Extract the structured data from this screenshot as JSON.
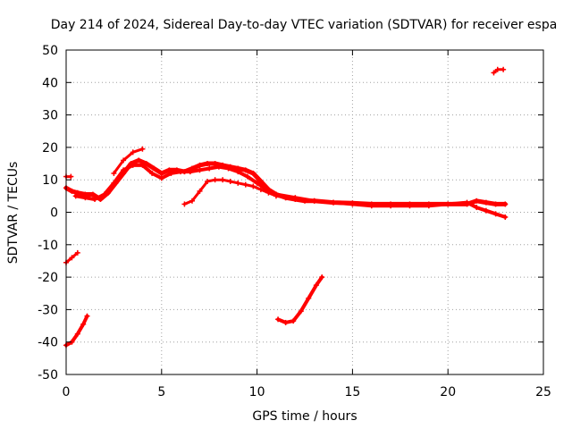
{
  "chart_data": {
    "type": "line",
    "title": "Day 214 of 2024, Sidereal Day-to-day VTEC variation (SDTVAR) for receiver espa",
    "xlabel": "GPS time / hours",
    "ylabel": "SDTVAR / TECUs",
    "xlim": [
      0,
      25
    ],
    "ylim": [
      -50,
      50
    ],
    "x_ticks": [
      0,
      5,
      10,
      15,
      20,
      25
    ],
    "y_ticks": [
      -50,
      -40,
      -30,
      -20,
      -10,
      0,
      10,
      20,
      30,
      40,
      50
    ],
    "x_tick_labels": [
      "0",
      "5",
      "10",
      "15",
      "20",
      "25"
    ],
    "y_tick_labels": [
      "-50",
      "-40",
      "-30",
      "-20",
      "-10",
      "0",
      "10",
      "20",
      "30",
      "40",
      "50"
    ],
    "grid": true,
    "series_color": "#ff0000",
    "series": [
      {
        "name": "main-band-upper",
        "width": 5,
        "x": [
          0.0,
          0.3,
          0.6,
          1.0,
          1.4,
          1.8,
          2.2,
          2.6,
          3.0,
          3.4,
          3.8,
          4.2,
          4.6,
          5.0,
          5.4,
          5.8,
          6.2,
          6.6,
          7.0,
          7.4,
          7.8,
          8.2,
          8.6,
          9.0,
          9.4,
          9.8,
          10.2,
          10.6,
          11.0,
          11.5,
          12.0,
          12.5,
          13.0,
          14.0,
          15.0,
          16.0,
          17.0,
          18.0,
          19.0,
          20.0,
          21.0,
          21.5,
          22.0,
          22.5,
          23.0
        ],
        "y": [
          7.5,
          6.5,
          6.0,
          5.5,
          5.5,
          4.0,
          6.0,
          9.0,
          12.0,
          15.0,
          16.0,
          15.0,
          13.5,
          12.0,
          13.0,
          13.0,
          12.5,
          13.5,
          14.5,
          15.0,
          15.0,
          14.5,
          14.0,
          13.5,
          13.0,
          12.0,
          9.5,
          7.0,
          5.5,
          4.5,
          4.0,
          3.5,
          3.5,
          3.0,
          2.8,
          2.5,
          2.5,
          2.5,
          2.5,
          2.5,
          2.5,
          3.5,
          3.0,
          2.5,
          2.5
        ]
      },
      {
        "name": "main-band-lower",
        "width": 4,
        "x": [
          0.5,
          1.0,
          1.5,
          2.0,
          2.5,
          3.0,
          3.5,
          4.0,
          4.5,
          5.0,
          5.5,
          6.0,
          6.5,
          7.0,
          7.5,
          8.0,
          8.5,
          9.0,
          9.5,
          10.0,
          10.5,
          11.0,
          12.0,
          13.0,
          14.0,
          15.0,
          16.0,
          17.0,
          18.0,
          19.0,
          20.0,
          21.0,
          21.5,
          22.0,
          22.5,
          23.0
        ],
        "y": [
          5.0,
          4.5,
          4.0,
          5.5,
          9.0,
          13.0,
          14.5,
          14.5,
          12.0,
          10.5,
          12.0,
          12.5,
          12.5,
          13.0,
          13.5,
          14.0,
          13.5,
          12.5,
          11.0,
          9.0,
          7.0,
          5.5,
          4.5,
          3.5,
          3.0,
          2.5,
          2.0,
          2.0,
          2.0,
          2.0,
          2.5,
          3.0,
          1.5,
          0.5,
          -0.5,
          -1.5
        ]
      },
      {
        "name": "upper-arc",
        "width": 3,
        "x": [
          2.5,
          3.0,
          3.5,
          4.0
        ],
        "y": [
          12.0,
          16.0,
          18.5,
          19.5
        ]
      },
      {
        "name": "mid-branch",
        "width": 3,
        "x": [
          6.2,
          6.6,
          7.0,
          7.4,
          7.8,
          8.2,
          8.6,
          9.0,
          9.4,
          9.8,
          10.2,
          10.6,
          11.0,
          11.5
        ],
        "y": [
          2.5,
          3.5,
          6.5,
          9.5,
          10.0,
          10.0,
          9.5,
          9.0,
          8.5,
          8.0,
          7.0,
          6.0,
          5.0,
          4.5
        ]
      },
      {
        "name": "left-short",
        "width": 3,
        "x": [
          0.0,
          0.25
        ],
        "y": [
          11.0,
          11.0
        ]
      },
      {
        "name": "neg-lower",
        "width": 4,
        "x": [
          0.0,
          0.3,
          0.6,
          0.9,
          1.1
        ],
        "y": [
          -41.0,
          -40.0,
          -37.5,
          -34.5,
          -32.0
        ]
      },
      {
        "name": "neg-upper",
        "width": 3,
        "x": [
          0.0,
          0.3,
          0.6
        ],
        "y": [
          -15.5,
          -14.0,
          -12.5
        ]
      },
      {
        "name": "neg-mid-arc",
        "width": 4,
        "x": [
          11.1,
          11.5,
          11.9,
          12.3,
          12.7,
          13.1,
          13.4
        ],
        "y": [
          -33.0,
          -34.0,
          -33.5,
          -30.5,
          -26.5,
          -22.5,
          -20.0
        ]
      },
      {
        "name": "top-right",
        "width": 3,
        "x": [
          22.4,
          22.6,
          22.9
        ],
        "y": [
          43.0,
          44.0,
          44.0
        ]
      }
    ]
  }
}
